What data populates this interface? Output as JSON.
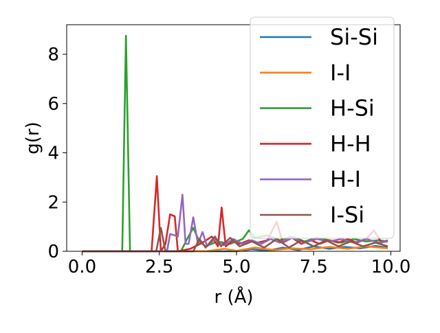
{
  "chart_data": {
    "type": "line",
    "xlabel": "r (Å)",
    "ylabel": "g(r)",
    "xlim": [
      -0.5,
      10.3
    ],
    "ylim": [
      0,
      9.2
    ],
    "xticks": [
      0.0,
      2.5,
      5.0,
      7.5,
      10.0
    ],
    "xtick_labels": [
      "0.0",
      "2.5",
      "5.0",
      "7.5",
      "10.0"
    ],
    "yticks": [
      0,
      2,
      4,
      6,
      8
    ],
    "ytick_labels": [
      "0",
      "2",
      "4",
      "6",
      "8"
    ],
    "grid": false,
    "legend_position": "top-right",
    "series": [
      {
        "name": "Si-Si",
        "color": "#1f77b4",
        "points": [
          [
            0,
            0
          ],
          [
            2.5,
            0
          ],
          [
            5.0,
            0
          ],
          [
            5.5,
            0.08
          ],
          [
            6.0,
            0.02
          ],
          [
            6.5,
            0.15
          ],
          [
            7.0,
            0.05
          ],
          [
            7.5,
            0.2
          ],
          [
            8.0,
            0.1
          ],
          [
            8.5,
            0.18
          ],
          [
            9.0,
            0.12
          ],
          [
            9.5,
            0.22
          ],
          [
            9.9,
            0.15
          ]
        ]
      },
      {
        "name": "I-I",
        "color": "#ff7f0e",
        "points": [
          [
            0,
            0
          ],
          [
            4.0,
            0
          ],
          [
            4.6,
            0.1
          ],
          [
            5.0,
            0.02
          ],
          [
            5.6,
            0.15
          ],
          [
            6.2,
            0.05
          ],
          [
            6.8,
            0.12
          ],
          [
            7.4,
            0.08
          ],
          [
            8.0,
            0.18
          ],
          [
            8.6,
            0.1
          ],
          [
            9.2,
            0.2
          ],
          [
            9.9,
            0.12
          ]
        ]
      },
      {
        "name": "H-Si",
        "color": "#2ca02c",
        "points": [
          [
            0,
            0
          ],
          [
            1.3,
            0
          ],
          [
            1.42,
            8.75
          ],
          [
            1.55,
            0
          ],
          [
            3.2,
            0
          ],
          [
            3.4,
            0.5
          ],
          [
            3.6,
            0.95
          ],
          [
            3.8,
            0.4
          ],
          [
            4.0,
            0.2
          ],
          [
            4.4,
            0.4
          ],
          [
            4.8,
            0.3
          ],
          [
            5.2,
            0.5
          ],
          [
            5.4,
            0.85
          ],
          [
            5.6,
            0.55
          ],
          [
            6.0,
            0.65
          ],
          [
            6.4,
            0.45
          ],
          [
            6.8,
            0.6
          ],
          [
            7.2,
            0.4
          ],
          [
            7.6,
            0.55
          ],
          [
            8.0,
            0.45
          ],
          [
            8.4,
            0.35
          ],
          [
            8.8,
            0.5
          ],
          [
            9.2,
            0.4
          ],
          [
            9.6,
            0.45
          ],
          [
            9.9,
            0.4
          ]
        ]
      },
      {
        "name": "H-H",
        "color": "#d62728",
        "points": [
          [
            0,
            0
          ],
          [
            2.25,
            0
          ],
          [
            2.42,
            3.05
          ],
          [
            2.55,
            0
          ],
          [
            2.7,
            0.3
          ],
          [
            2.85,
            1.5
          ],
          [
            3.0,
            1.42
          ],
          [
            3.1,
            0
          ],
          [
            3.5,
            0.1
          ],
          [
            3.9,
            0.35
          ],
          [
            4.2,
            0.6
          ],
          [
            4.4,
            0.2
          ],
          [
            4.52,
            1.78
          ],
          [
            4.65,
            0.2
          ],
          [
            4.9,
            0.45
          ],
          [
            5.1,
            0.3
          ],
          [
            5.4,
            0.45
          ],
          [
            5.7,
            0.35
          ],
          [
            6.0,
            0.45
          ],
          [
            6.3,
            1.2
          ],
          [
            6.5,
            0.35
          ],
          [
            6.8,
            0.55
          ],
          [
            7.1,
            0.3
          ],
          [
            7.4,
            0.45
          ],
          [
            7.7,
            0.3
          ],
          [
            8.0,
            0.45
          ],
          [
            8.3,
            0.35
          ],
          [
            8.6,
            0.5
          ],
          [
            8.9,
            0.35
          ],
          [
            9.2,
            0.5
          ],
          [
            9.45,
            0.85
          ],
          [
            9.7,
            0.35
          ],
          [
            9.9,
            0.45
          ]
        ]
      },
      {
        "name": "H-I",
        "color": "#9467bd",
        "points": [
          [
            0,
            0
          ],
          [
            2.75,
            0
          ],
          [
            2.85,
            0.7
          ],
          [
            3.0,
            0.65
          ],
          [
            3.1,
            0.6
          ],
          [
            3.25,
            2.3
          ],
          [
            3.35,
            0.3
          ],
          [
            3.45,
            0.3
          ],
          [
            3.6,
            1.38
          ],
          [
            3.75,
            0.3
          ],
          [
            3.9,
            0.78
          ],
          [
            4.05,
            0.2
          ],
          [
            4.3,
            0.5
          ],
          [
            4.6,
            0.25
          ],
          [
            4.9,
            0.5
          ],
          [
            5.2,
            0.3
          ],
          [
            5.5,
            0.45
          ],
          [
            5.8,
            0.3
          ],
          [
            6.1,
            0.5
          ],
          [
            6.4,
            0.35
          ],
          [
            6.8,
            0.55
          ],
          [
            7.2,
            0.35
          ],
          [
            7.6,
            0.5
          ],
          [
            8.0,
            0.4
          ],
          [
            8.4,
            0.5
          ],
          [
            8.8,
            0.35
          ],
          [
            9.2,
            0.5
          ],
          [
            9.6,
            0.35
          ],
          [
            9.9,
            0.4
          ]
        ]
      },
      {
        "name": "I-Si",
        "color": "#8c564b",
        "points": [
          [
            0,
            0
          ],
          [
            2.4,
            0
          ],
          [
            2.55,
            0.95
          ],
          [
            2.7,
            0
          ],
          [
            3.6,
            0
          ],
          [
            3.8,
            0.5
          ],
          [
            4.0,
            0.15
          ],
          [
            4.3,
            0.6
          ],
          [
            4.5,
            0.2
          ],
          [
            4.8,
            0.55
          ],
          [
            5.1,
            0.2
          ],
          [
            5.5,
            0.4
          ],
          [
            5.9,
            0.15
          ],
          [
            6.3,
            0.5
          ],
          [
            6.7,
            0.15
          ],
          [
            7.1,
            0.45
          ],
          [
            7.5,
            0.2
          ],
          [
            7.9,
            0.45
          ],
          [
            8.3,
            0.2
          ],
          [
            8.7,
            0.4
          ],
          [
            9.1,
            0.2
          ],
          [
            9.5,
            0.35
          ],
          [
            9.9,
            0.2
          ]
        ]
      }
    ]
  }
}
